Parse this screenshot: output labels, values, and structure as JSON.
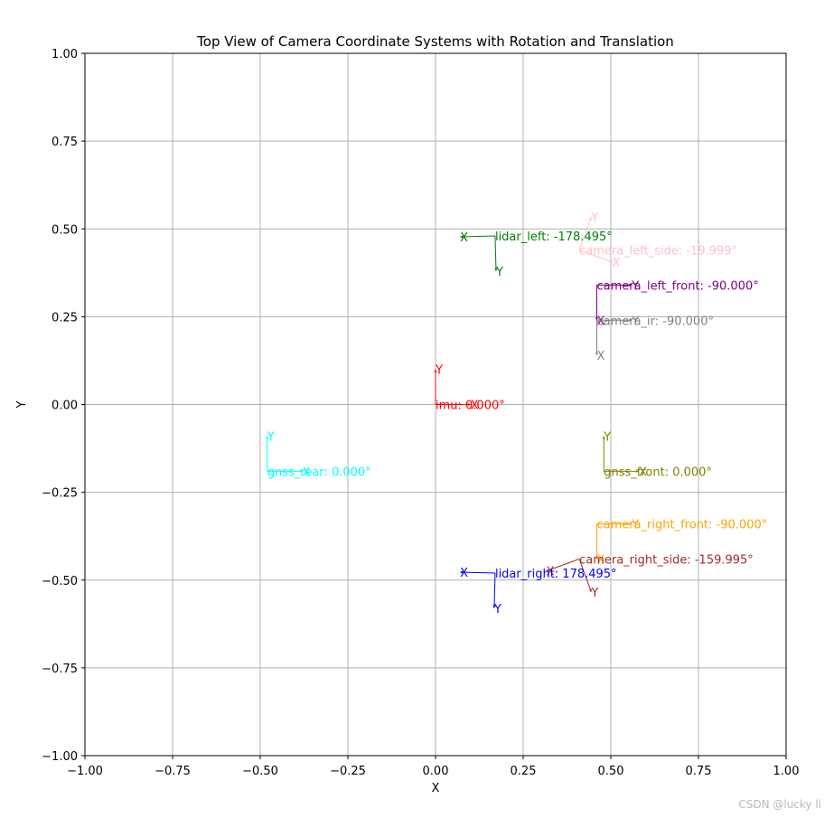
{
  "chart_data": {
    "type": "scatter",
    "title": "Top View of Camera Coordinate Systems with Rotation and Translation",
    "xlabel": "X",
    "ylabel": "Y",
    "xlim": [
      -1.0,
      1.0
    ],
    "ylim": [
      -1.0,
      1.0
    ],
    "grid": true,
    "xticks": [
      "−1.00",
      "−0.75",
      "−0.50",
      "−0.25",
      "0.00",
      "0.25",
      "0.50",
      "0.75",
      "1.00"
    ],
    "yticks": [
      "−1.00",
      "−0.75",
      "−0.50",
      "−0.25",
      "0.00",
      "0.25",
      "0.50",
      "0.75",
      "1.00"
    ],
    "frames": [
      {
        "label": "imu: 0.000°",
        "color": "#ff0000",
        "x": 0.0,
        "y": 0.0,
        "rotation_deg": 0.0
      },
      {
        "label": "lidar_left: -178.495°",
        "color": "#008000",
        "x": 0.17,
        "y": 0.48,
        "rotation_deg": -178.495
      },
      {
        "label": "camera_left_side: -19.999°",
        "color": "#ffc0cb",
        "x": 0.41,
        "y": 0.44,
        "rotation_deg": -19.999
      },
      {
        "label": "camera_left_front: -90.000°",
        "color": "#800080",
        "x": 0.46,
        "y": 0.34,
        "rotation_deg": -90.0
      },
      {
        "label": "camera_ir: -90.000°",
        "color": "#808080",
        "x": 0.46,
        "y": 0.24,
        "rotation_deg": -90.0
      },
      {
        "label": "gnss_rear: 0.000°",
        "color": "#00ffff",
        "x": -0.48,
        "y": -0.19,
        "rotation_deg": 0.0
      },
      {
        "label": "gnss_front: 0.000°",
        "color": "#808000",
        "x": 0.48,
        "y": -0.19,
        "rotation_deg": 0.0
      },
      {
        "label": "camera_right_front: -90.000°",
        "color": "#ffa500",
        "x": 0.46,
        "y": -0.34,
        "rotation_deg": -90.0
      },
      {
        "label": "camera_right_side: -159.995°",
        "color": "#a52a2a",
        "x": 0.41,
        "y": -0.44,
        "rotation_deg": -159.995
      },
      {
        "label": "lidar_right: 178.495°",
        "color": "#0000ff",
        "x": 0.17,
        "y": -0.48,
        "rotation_deg": 178.495
      }
    ],
    "axis_tip_labels": [
      "X",
      "Y"
    ]
  },
  "watermark": "CSDN @lucky li"
}
